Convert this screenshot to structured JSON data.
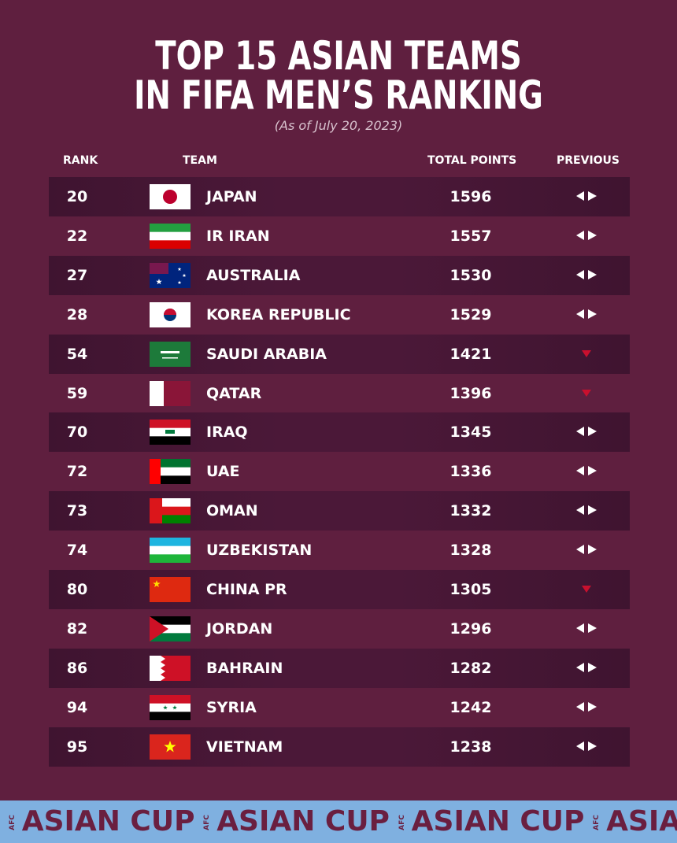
{
  "header": {
    "title_lines": [
      "TOP 15 ASIAN TEAMS",
      "IN FIFA MEN’S  RANKING"
    ],
    "subtitle": "(As of  July 20, 2023)"
  },
  "table": {
    "columns": [
      "RANK",
      "TEAM",
      "TOTAL POINTS",
      "PREVIOUS"
    ],
    "rows": [
      [
        "20",
        "JAPAN",
        "1596"
      ],
      [
        "22",
        "IR IRAN",
        "1557"
      ],
      [
        "27",
        "AUSTRALIA",
        "1530"
      ],
      [
        "28",
        "KOREA REPUBLIC",
        "1529"
      ],
      [
        "54",
        "SAUDI ARABIA",
        "1421"
      ],
      [
        "59",
        "QATAR",
        "1396"
      ],
      [
        "70",
        "IRAQ",
        "1345"
      ],
      [
        "72",
        "UAE",
        "1336"
      ],
      [
        "73",
        "OMAN",
        "1332"
      ],
      [
        "74",
        "UZBEKISTAN",
        "1328"
      ],
      [
        "80",
        "CHINA PR",
        "1305"
      ],
      [
        "82",
        "JORDAN",
        "1296"
      ],
      [
        "86",
        "BAHRAIN",
        "1282"
      ],
      [
        "94",
        "SYRIA",
        "1242"
      ],
      [
        "95",
        "VIETNAM",
        "1238"
      ]
    ]
  },
  "footer": {
    "logo": "AFC",
    "text": "ASIAN CUP"
  }
}
